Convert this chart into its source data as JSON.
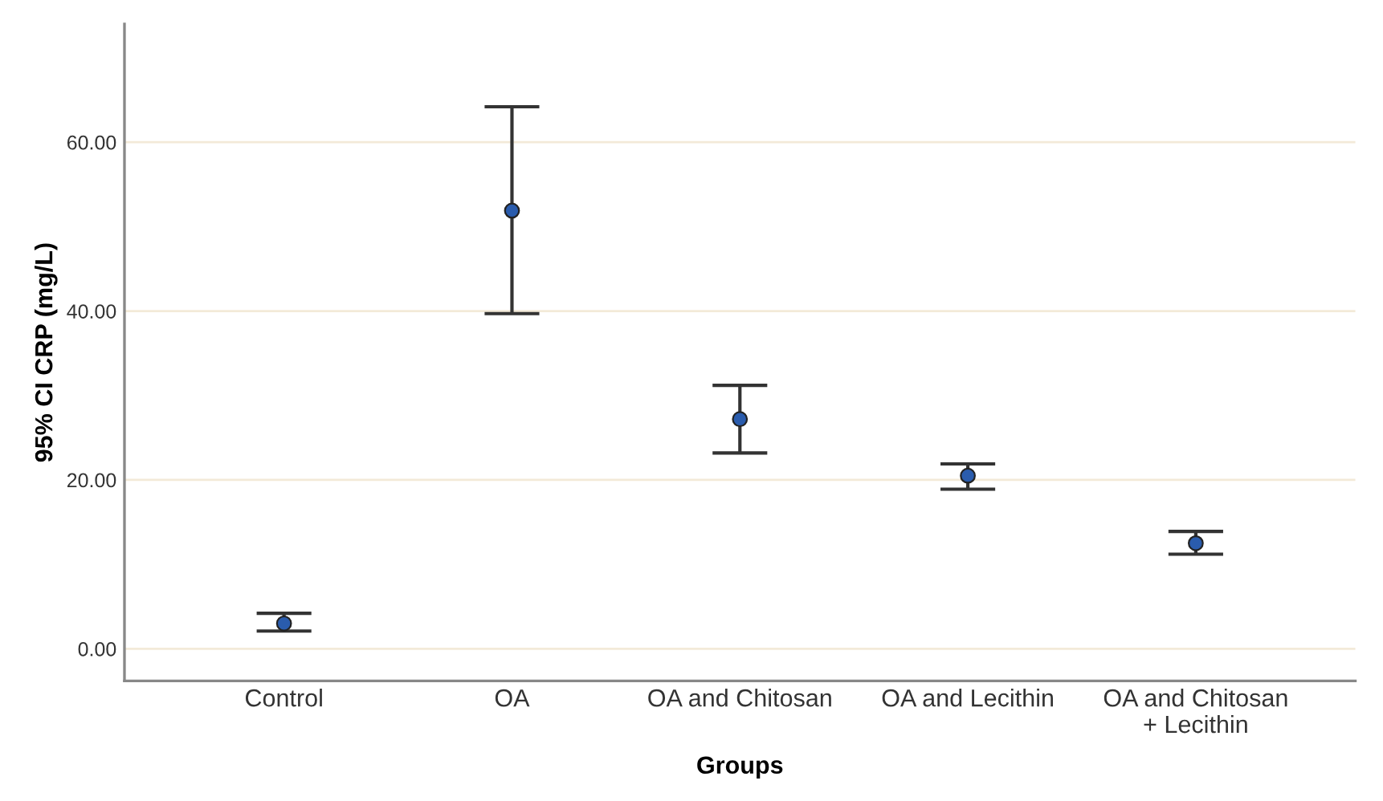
{
  "chart_data": {
    "type": "scatter",
    "xlabel": "Groups",
    "ylabel": "95% CI CRP (mg/L)",
    "categories": [
      "Control",
      "OA",
      "OA and Chitosan",
      "OA and Lecithin",
      "OA and Chitosan\n+ Lecithin"
    ],
    "values": [
      3.0,
      51.9,
      27.2,
      20.5,
      12.5
    ],
    "errors": [
      [
        2.1,
        4.2
      ],
      [
        39.7,
        64.2
      ],
      [
        23.2,
        31.2
      ],
      [
        18.9,
        21.9
      ],
      [
        11.2,
        13.9
      ]
    ],
    "color": "#2a5cad",
    "marker": "circle",
    "ylim": [
      -3.8,
      74
    ],
    "yticks": [
      {
        "value": 0,
        "label": "0.00"
      },
      {
        "value": 20,
        "label": "20.00"
      },
      {
        "value": 40,
        "label": "40.00"
      },
      {
        "value": 60,
        "label": "60.00"
      }
    ],
    "grid": "y"
  }
}
